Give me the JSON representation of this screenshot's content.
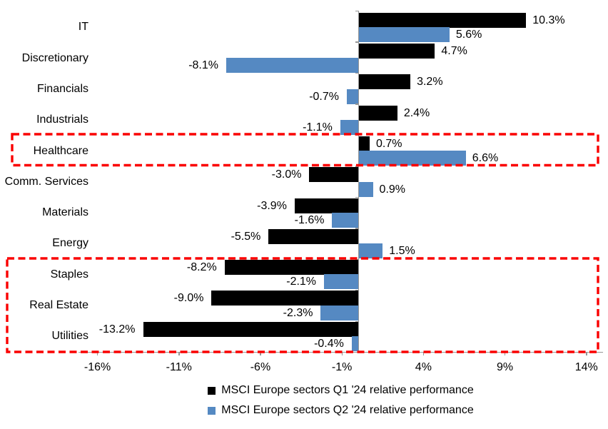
{
  "chart_data": {
    "type": "bar",
    "orientation": "horizontal",
    "title": "",
    "categories": [
      "IT",
      "Discretionary",
      "Financials",
      "Industrials",
      "Healthcare",
      "Comm. Services",
      "Materials",
      "Energy",
      "Staples",
      "Real Estate",
      "Utilities"
    ],
    "series": [
      {
        "name": "MSCI Europe sectors Q1 '24 relative performance",
        "color": "#000000",
        "values": [
          10.3,
          4.7,
          3.2,
          2.4,
          0.7,
          -3.0,
          -3.9,
          -5.5,
          -8.2,
          -9.0,
          -13.2
        ],
        "labels": [
          "10.3%",
          "4.7%",
          "3.2%",
          "2.4%",
          "0.7%",
          "-3.0%",
          "-3.9%",
          "-5.5%",
          "-8.2%",
          "-9.0%",
          "-13.2%"
        ]
      },
      {
        "name": "MSCI Europe sectors Q2 '24 relative performance",
        "color": "#5589C2",
        "values": [
          5.6,
          -8.1,
          -0.7,
          -1.1,
          6.6,
          0.9,
          -1.6,
          1.5,
          -2.1,
          -2.3,
          -0.4
        ],
        "labels": [
          "5.6%",
          "-8.1%",
          "-0.7%",
          "-1.1%",
          "6.6%",
          "0.9%",
          "-1.6%",
          "1.5%",
          "-2.1%",
          "-2.3%",
          "-0.4%"
        ]
      }
    ],
    "x_axis": {
      "min": -17.2,
      "max": 15.0,
      "unit": "%",
      "tick_values": [
        -16,
        -11,
        -6,
        -1,
        4,
        9,
        14
      ],
      "tick_labels": [
        "-16%",
        "-11%",
        "-6%",
        "-1%",
        "4%",
        "9%",
        "14%"
      ]
    },
    "grid": false,
    "legend_position": "bottom",
    "highlights": [
      {
        "id": "healthcare-highlight",
        "categories": [
          "Healthcare"
        ],
        "style": "dashed"
      },
      {
        "id": "defensives-highlight",
        "categories": [
          "Staples",
          "Real Estate",
          "Utilities"
        ],
        "style": "dashed"
      }
    ]
  },
  "colors": {
    "q1_bar": "#000000",
    "q2_bar": "#5589C2",
    "axis": "#969696",
    "highlight": "#FA0000",
    "background": "#FFFFFF",
    "text": "#000000"
  }
}
